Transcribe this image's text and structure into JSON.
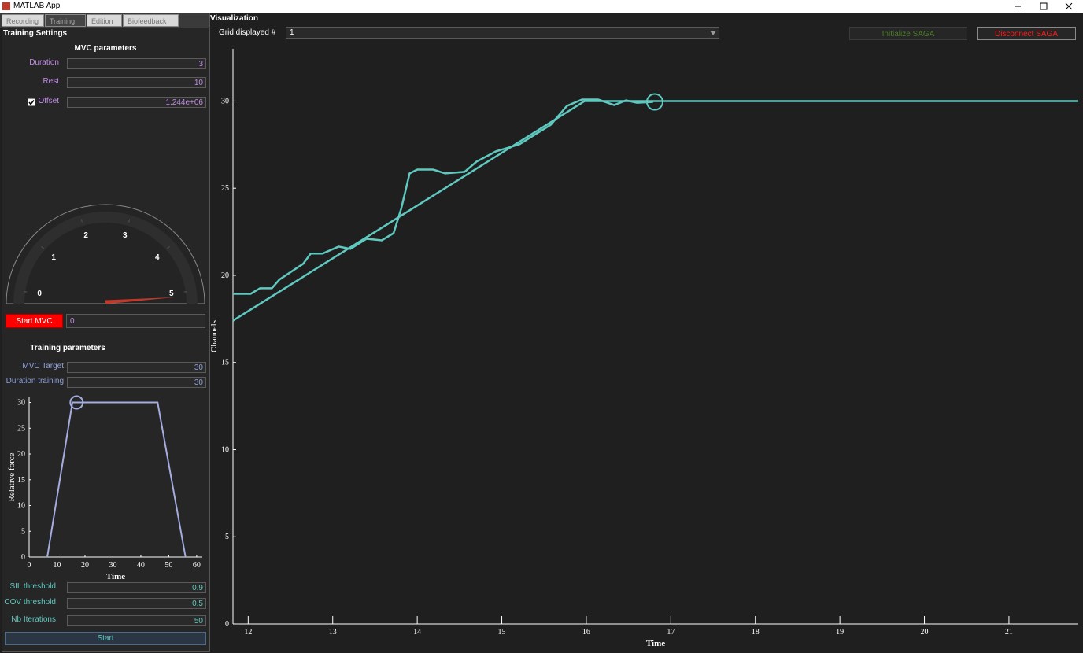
{
  "window": {
    "title": "MATLAB App"
  },
  "tabs": [
    "Recording",
    "Training",
    "Edition",
    "Biofeedback"
  ],
  "settings": {
    "title": "Training Settings",
    "mvc_title": "MVC parameters",
    "mvc_fields": [
      {
        "label": "Duration",
        "value": "3"
      },
      {
        "label": "Rest",
        "value": "10"
      },
      {
        "label": "Offset",
        "value": "1.244e+06",
        "checked": true
      }
    ],
    "gauge": {
      "ticks": [
        0,
        1,
        2,
        3,
        4,
        5
      ],
      "value": 5
    },
    "start_mvc": "Start MVC",
    "mvc_result": "0",
    "training_title": "Training parameters",
    "training_fields": [
      {
        "label": "MVC Target",
        "value": "30"
      },
      {
        "label": "Duration training",
        "value": "30"
      }
    ],
    "profile": {
      "type": "line",
      "line": {
        "x": [
          6.5,
          15.5,
          46,
          56
        ],
        "y": [
          0,
          30,
          30,
          0
        ]
      },
      "marker": {
        "x": 17,
        "y": 30
      },
      "xlim": [
        0,
        62
      ],
      "ylim": [
        0,
        31
      ],
      "xticks": [
        0,
        10,
        20,
        30,
        40,
        50,
        60
      ],
      "yticks": [
        0,
        5,
        10,
        15,
        20,
        25,
        30
      ],
      "xlabel": "Time",
      "ylabel": "Relative force",
      "color": "#a5acdf"
    },
    "algo_fields": [
      {
        "label": "SIL threshold",
        "value": "0.9"
      },
      {
        "label": "COV threshold",
        "value": "0.5"
      },
      {
        "label": "Nb Iterations",
        "value": "50"
      }
    ],
    "start": "Start"
  },
  "visualization": {
    "title": "Visualization",
    "grid_label": "Grid displayed #",
    "grid_value": "1",
    "initialize": "Initialize SAGA",
    "disconnect": "Disconnect SAGA",
    "chart": {
      "type": "line",
      "xlim": [
        11.82,
        21.82
      ],
      "ylim": [
        0,
        33
      ],
      "xticks": [
        12,
        13,
        14,
        15,
        16,
        17,
        18,
        19,
        20,
        21
      ],
      "yticks": [
        0,
        5,
        10,
        15,
        20,
        25,
        30
      ],
      "xlabel": "Time",
      "ylabel": "Channels",
      "color": "#5fc9c0",
      "target": {
        "x": [
          11.82,
          15.98,
          21.82
        ],
        "y": [
          17.4,
          30,
          30
        ]
      },
      "signal": {
        "x": [
          11.82,
          12.03,
          12.14,
          12.28,
          12.37,
          12.51,
          12.65,
          12.74,
          12.88,
          13.07,
          13.21,
          13.4,
          13.58,
          13.72,
          13.81,
          13.91,
          14.0,
          14.19,
          14.33,
          14.56,
          14.7,
          14.93,
          15.21,
          15.4,
          15.58,
          15.77,
          15.95,
          16.14,
          16.33,
          16.47,
          16.6,
          16.79
        ],
        "y": [
          18.94,
          18.94,
          19.26,
          19.26,
          19.76,
          20.21,
          20.66,
          21.25,
          21.25,
          21.65,
          21.52,
          22.1,
          22.01,
          22.42,
          23.82,
          25.85,
          26.07,
          26.07,
          25.85,
          25.94,
          26.52,
          27.11,
          27.52,
          28.1,
          28.64,
          29.72,
          30.09,
          30.09,
          29.77,
          30.04,
          29.9,
          29.95
        ]
      },
      "marker": {
        "x": 16.81,
        "y": 29.95
      }
    }
  }
}
